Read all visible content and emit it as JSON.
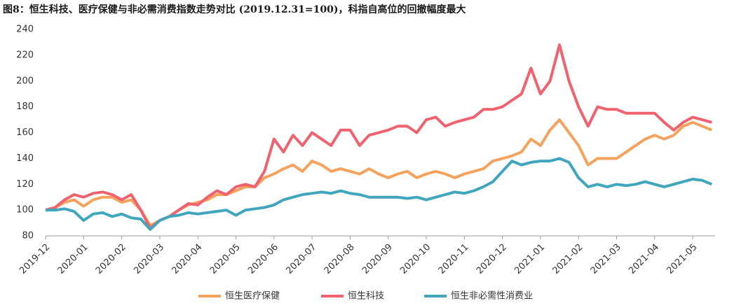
{
  "chart_data": {
    "type": "line",
    "title": "图8：恒生科技、医疗保健与非必需消费指数走势对比 (2019.12.31=100)，科指自高位的回撤幅度最大",
    "categories": [
      "2019-12",
      null,
      null,
      null,
      "2020-01",
      null,
      null,
      null,
      "2020-02",
      null,
      null,
      null,
      "2020-03",
      null,
      null,
      null,
      "2020-04",
      null,
      null,
      null,
      "2020-05",
      null,
      null,
      null,
      "2020-06",
      null,
      null,
      null,
      "2020-07",
      null,
      null,
      null,
      "2020-08",
      null,
      null,
      null,
      "2020-09",
      null,
      null,
      null,
      "2020-10",
      null,
      null,
      null,
      "2020-11",
      null,
      null,
      null,
      "2020-12",
      null,
      null,
      null,
      "2021-01",
      null,
      null,
      null,
      "2021-02",
      null,
      null,
      null,
      "2021-03",
      null,
      null,
      null,
      "2021-04",
      null,
      null,
      null,
      "2021-05",
      null,
      null
    ],
    "series": [
      {
        "name": "恒生医疗保健",
        "color": "#f5a35c",
        "values": [
          100,
          102,
          106,
          108,
          103,
          108,
          110,
          110,
          106,
          108,
          100,
          88,
          92,
          95,
          100,
          104,
          106,
          108,
          112,
          112,
          115,
          118,
          118,
          125,
          128,
          132,
          135,
          130,
          138,
          135,
          130,
          132,
          130,
          128,
          132,
          128,
          125,
          128,
          130,
          125,
          128,
          130,
          128,
          125,
          128,
          130,
          132,
          138,
          140,
          142,
          145,
          155,
          150,
          162,
          170,
          160,
          150,
          135,
          140,
          140,
          140,
          145,
          150,
          155,
          158,
          155,
          158,
          165,
          168,
          165,
          162
        ]
      },
      {
        "name": "恒生科技",
        "color": "#f0626e",
        "values": [
          100,
          102,
          108,
          112,
          110,
          113,
          114,
          112,
          108,
          112,
          100,
          86,
          92,
          95,
          100,
          105,
          104,
          110,
          115,
          112,
          118,
          120,
          118,
          130,
          155,
          145,
          158,
          150,
          160,
          155,
          150,
          162,
          162,
          150,
          158,
          160,
          162,
          165,
          165,
          160,
          170,
          172,
          165,
          168,
          170,
          172,
          178,
          178,
          180,
          185,
          190,
          210,
          190,
          200,
          228,
          200,
          180,
          165,
          180,
          178,
          178,
          175,
          175,
          175,
          175,
          168,
          162,
          168,
          172,
          170,
          168
        ]
      },
      {
        "name": "恒生非必需性消费业",
        "color": "#3fa6be",
        "values": [
          100,
          100,
          101,
          99,
          92,
          97,
          98,
          95,
          97,
          94,
          93,
          85,
          92,
          95,
          96,
          98,
          97,
          98,
          99,
          100,
          96,
          100,
          101,
          102,
          104,
          108,
          110,
          112,
          113,
          114,
          113,
          115,
          113,
          112,
          110,
          110,
          110,
          110,
          109,
          110,
          108,
          110,
          112,
          114,
          113,
          115,
          118,
          122,
          130,
          138,
          135,
          137,
          138,
          138,
          140,
          137,
          125,
          118,
          120,
          118,
          120,
          119,
          120,
          122,
          120,
          118,
          120,
          122,
          124,
          123,
          120
        ]
      }
    ],
    "ylim": [
      80,
      240
    ],
    "yticks": [
      80,
      100,
      120,
      140,
      160,
      180,
      200,
      220,
      240
    ],
    "grid": false,
    "legend": "bottom"
  }
}
